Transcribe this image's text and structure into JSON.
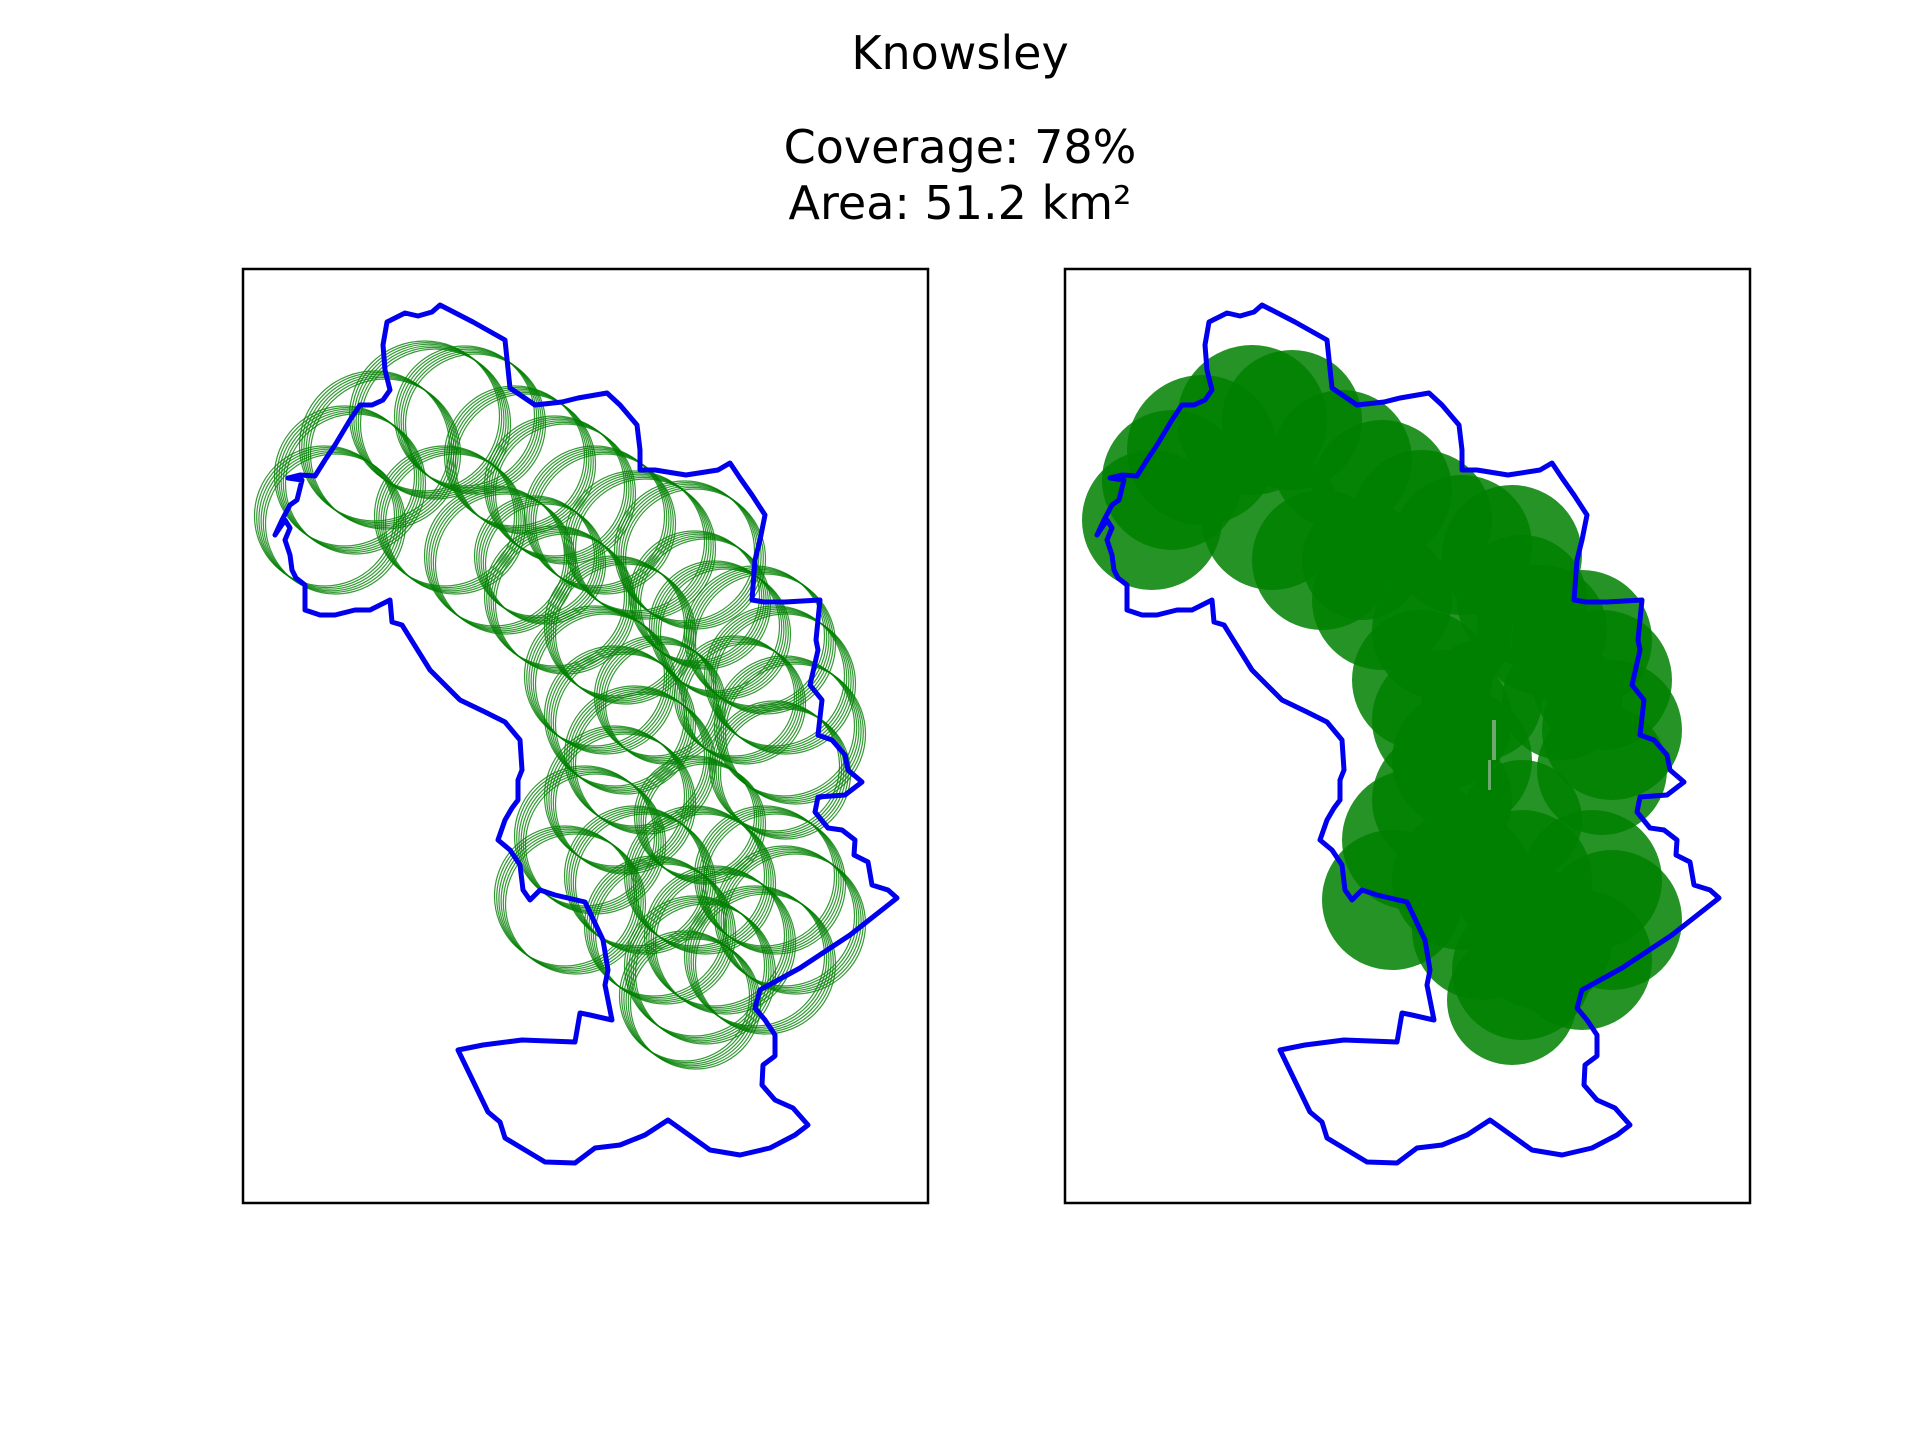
{
  "figure": {
    "title": "Knowsley",
    "coverage_label": "Coverage: 78%",
    "area_label": "Area: 51.2 km²"
  },
  "colors": {
    "boundary": "#0000ee",
    "coverage": "#008000",
    "frame": "#000000"
  },
  "panels": [
    {
      "id": "left",
      "style": "outline",
      "description_key": "circles-outline"
    },
    {
      "id": "right",
      "style": "filled",
      "description_key": "circles-filled"
    }
  ],
  "coverage_percent": 78
}
